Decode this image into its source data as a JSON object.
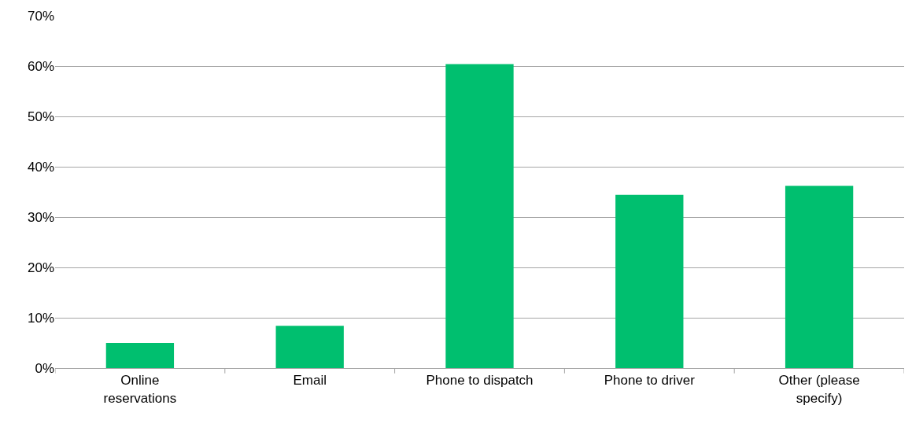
{
  "chart_data": {
    "type": "bar",
    "categories": [
      "Online reservations",
      "Email",
      "Phone to dispatch",
      "Phone to driver",
      "Other (please specify)"
    ],
    "values": [
      5.0,
      8.4,
      60.4,
      34.4,
      36.2
    ],
    "color": "#00bf6f",
    "ylim": [
      0,
      70
    ],
    "yticks": [
      {
        "value": 0,
        "label": "0%"
      },
      {
        "value": 10,
        "label": "10%"
      },
      {
        "value": 20,
        "label": "20%"
      },
      {
        "value": 30,
        "label": "30%"
      },
      {
        "value": 40,
        "label": "40%"
      },
      {
        "value": 50,
        "label": "50%"
      },
      {
        "value": 60,
        "label": "60%"
      },
      {
        "value": 70,
        "label": "70%"
      }
    ],
    "grid": "y"
  }
}
